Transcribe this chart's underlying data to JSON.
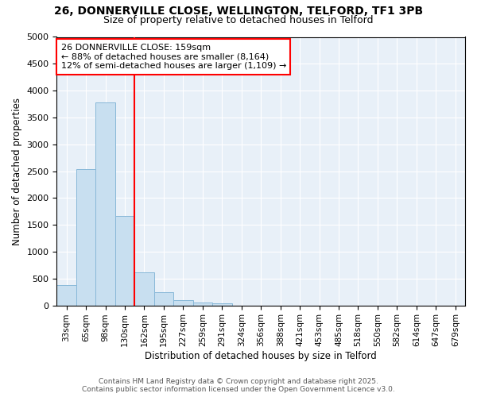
{
  "title_line1": "26, DONNERVILLE CLOSE, WELLINGTON, TELFORD, TF1 3PB",
  "title_line2": "Size of property relative to detached houses in Telford",
  "xlabel": "Distribution of detached houses by size in Telford",
  "ylabel": "Number of detached properties",
  "categories": [
    "33sqm",
    "65sqm",
    "98sqm",
    "130sqm",
    "162sqm",
    "195sqm",
    "227sqm",
    "259sqm",
    "291sqm",
    "324sqm",
    "356sqm",
    "388sqm",
    "421sqm",
    "453sqm",
    "485sqm",
    "518sqm",
    "550sqm",
    "582sqm",
    "614sqm",
    "647sqm",
    "679sqm"
  ],
  "values": [
    380,
    2540,
    3780,
    1660,
    620,
    240,
    100,
    50,
    40,
    0,
    0,
    0,
    0,
    0,
    0,
    0,
    0,
    0,
    0,
    0,
    0
  ],
  "bar_color": "#c8dff0",
  "bar_edge_color": "#88b8d8",
  "property_line_index": 4,
  "property_line_color": "red",
  "annotation_text": "26 DONNERVILLE CLOSE: 159sqm\n← 88% of detached houses are smaller (8,164)\n12% of semi-detached houses are larger (1,109) →",
  "annotation_box_facecolor": "white",
  "annotation_box_edgecolor": "red",
  "ylim": [
    0,
    5000
  ],
  "yticks": [
    0,
    500,
    1000,
    1500,
    2000,
    2500,
    3000,
    3500,
    4000,
    4500,
    5000
  ],
  "background_color": "#ffffff",
  "plot_background": "#e8f0f8",
  "grid_color": "#ffffff",
  "footer_line1": "Contains HM Land Registry data © Crown copyright and database right 2025.",
  "footer_line2": "Contains public sector information licensed under the Open Government Licence v3.0."
}
